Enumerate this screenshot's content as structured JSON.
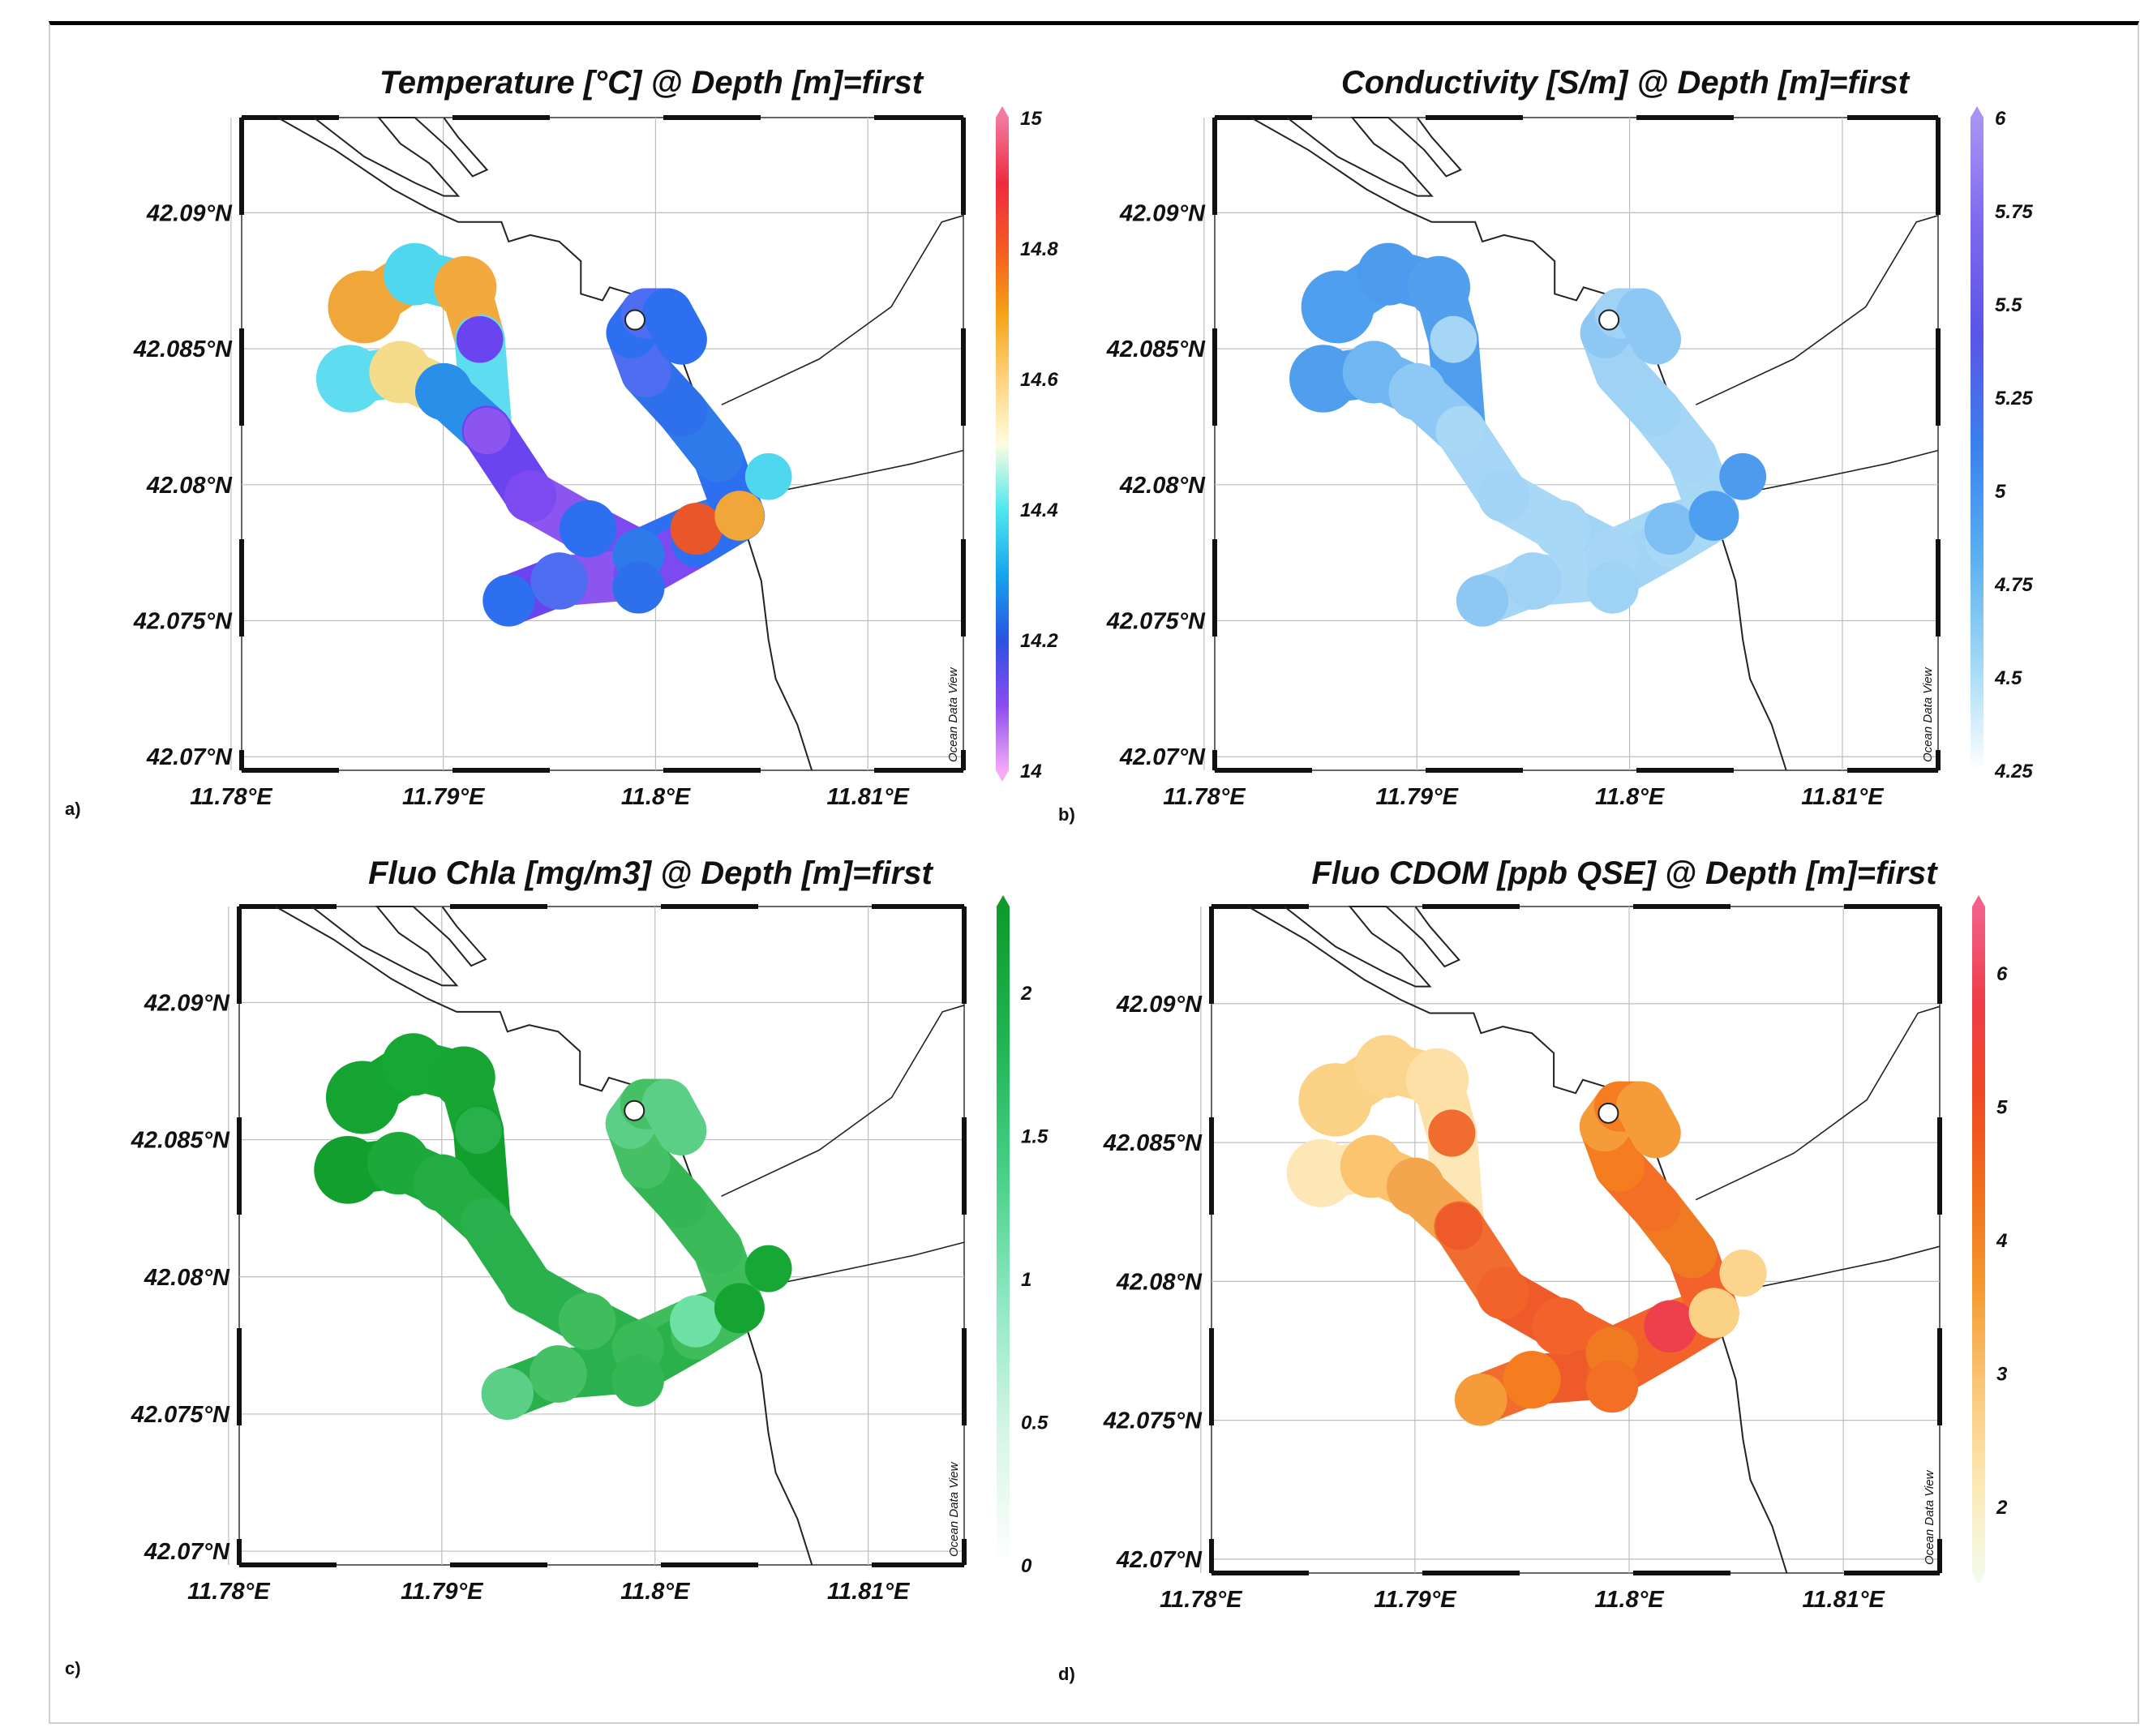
{
  "figure": {
    "latitude_ticks": [
      "42.09°N",
      "42.085°N",
      "42.08°N",
      "42.075°N",
      "42.07°N"
    ],
    "longitude_ticks": [
      "11.78°E",
      "11.79°E",
      "11.8°E",
      "11.81°E"
    ],
    "watermark": "Ocean Data View"
  },
  "panels": [
    {
      "label": "a)",
      "title": "Temperature [°C] @ Depth [m]=first",
      "variable": "Temperature",
      "unit": "°C",
      "colorbar_ticks": [
        "15",
        "14.8",
        "14.6",
        "14.4",
        "14.2",
        "14"
      ],
      "colorbar_range": [
        14,
        15
      ],
      "colorbar_stops": [
        "#f4aaf6",
        "#8a4cf0",
        "#2c52e0",
        "#15a6ee",
        "#4fe8f0",
        "#fdfde0",
        "#ffd27c",
        "#f5a216",
        "#f45a22",
        "#ef2a40",
        "#f27aa0"
      ],
      "track_colors": [
        "#f1a63a",
        "#4fd7ef",
        "#f2aa3e",
        "#5fdcf0",
        "#f5dc8a",
        "#2a8fe8",
        "#6a44ee",
        "#8c55f0",
        "#7d49f0",
        "#2d6ff0",
        "#2f7aea",
        "#2e70ec",
        "#4e6df0",
        "#2e6ef0",
        "#e8562a"
      ]
    },
    {
      "label": "b)",
      "title": "Conductivity [S/m] @ Depth [m]=first",
      "variable": "Conductivity",
      "unit": "S/m",
      "colorbar_ticks": [
        "6",
        "5.75",
        "5.5",
        "5.25",
        "5",
        "4.75",
        "4.5",
        "4.25"
      ],
      "colorbar_range": [
        4.25,
        6
      ],
      "colorbar_stops": [
        "#ffffff",
        "#9fd8f6",
        "#58aef0",
        "#3a80ee",
        "#5a55e6",
        "#7d68ee",
        "#a994f3"
      ],
      "track_colors": [
        "#4f9ff0",
        "#4d9bef",
        "#529fee",
        "#509eee",
        "#6fb6f2",
        "#8dc9f4",
        "#a6d6f5",
        "#a9d8f6",
        "#a2d4f5",
        "#a7d8f6",
        "#a5d6f5",
        "#9fd3f5",
        "#a0d2f5",
        "#8dc8f4",
        "#7fbff3"
      ]
    },
    {
      "label": "c)",
      "title": "Fluo Chla [mg/m3] @ Depth [m]=first",
      "variable": "Fluo Chla",
      "unit": "mg/m3",
      "colorbar_ticks": [
        "2",
        "1.5",
        "1",
        "0.5",
        "0"
      ],
      "colorbar_range": [
        0,
        2.3
      ],
      "colorbar_stops": [
        "#ffffff",
        "#d6f6e6",
        "#8ee8c2",
        "#46cf86",
        "#1fb452",
        "#0e9a2c"
      ],
      "track_colors": [
        "#15a431",
        "#17a735",
        "#17a634",
        "#139f2e",
        "#1ca93a",
        "#23ad42",
        "#28b04a",
        "#2ab04c",
        "#2ab14c",
        "#3fbc5c",
        "#39b957",
        "#34b655",
        "#46c064",
        "#5bcf86",
        "#6de0a5"
      ]
    },
    {
      "label": "d)",
      "title": "Fluo CDOM [ppb QSE] @ Depth [m]=first",
      "variable": "Fluo CDOM",
      "unit": "ppb QSE",
      "colorbar_ticks": [
        "6",
        "5",
        "4",
        "3",
        "2"
      ],
      "colorbar_range": [
        1.5,
        6.5
      ],
      "colorbar_stops": [
        "#f3fbe8",
        "#fde7b0",
        "#fac575",
        "#f59a2d",
        "#f1701c",
        "#ef4a22",
        "#ef3c48",
        "#f2628c"
      ],
      "track_colors": [
        "#fbd185",
        "#fbd48d",
        "#fde0a6",
        "#fde7b6",
        "#fcc46f",
        "#f4a64e",
        "#f06d2f",
        "#ee5a2a",
        "#f16328",
        "#f2622a",
        "#f07a22",
        "#f26f25",
        "#f57c1f",
        "#f59b3a",
        "#ee3f4c"
      ]
    }
  ]
}
